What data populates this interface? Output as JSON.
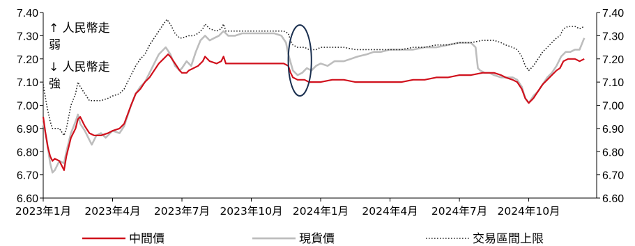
{
  "chart_data": {
    "type": "line",
    "xlabel": "",
    "ylabel": "",
    "ylim": [
      6.6,
      7.4
    ],
    "y_ticks": [
      "7.40",
      "7.30",
      "7.20",
      "7.10",
      "7.00",
      "6.90",
      "6.80",
      "6.70",
      "6.60"
    ],
    "y_ticks_right": [
      "7.40",
      "7.30",
      "7.20",
      "7.10",
      "7.00",
      "6.90",
      "6.80",
      "6.70",
      "6.60"
    ],
    "x_tick_labels": [
      "2023年1月",
      "2023年4月",
      "2023年7月",
      "2023年10月",
      "2024年1月",
      "2024年4月",
      "2024年7月",
      "2024年10月"
    ],
    "x_tick_months": [
      0,
      3,
      6,
      9,
      12,
      15,
      18,
      21
    ],
    "x_range_months": [
      0,
      23.6
    ],
    "annotations": {
      "top_line1": "↑ 人民幣走",
      "top_line2": "弱",
      "bottom_line1": "↓ 人民幣走",
      "bottom_line2": "強"
    },
    "highlight_ellipse_months": [
      10.6,
      11.6
    ],
    "series": [
      {
        "name": "中間價",
        "style": "solid",
        "color": "#d0101c",
        "points": [
          [
            0.0,
            6.95
          ],
          [
            0.1,
            6.88
          ],
          [
            0.2,
            6.82
          ],
          [
            0.3,
            6.78
          ],
          [
            0.4,
            6.76
          ],
          [
            0.5,
            6.77
          ],
          [
            0.7,
            6.76
          ],
          [
            0.9,
            6.72
          ],
          [
            1.0,
            6.78
          ],
          [
            1.2,
            6.86
          ],
          [
            1.4,
            6.9
          ],
          [
            1.5,
            6.94
          ],
          [
            1.6,
            6.95
          ],
          [
            1.8,
            6.91
          ],
          [
            2.0,
            6.88
          ],
          [
            2.2,
            6.87
          ],
          [
            2.5,
            6.87
          ],
          [
            2.8,
            6.88
          ],
          [
            3.0,
            6.89
          ],
          [
            3.3,
            6.9
          ],
          [
            3.5,
            6.92
          ],
          [
            3.8,
            7.0
          ],
          [
            4.0,
            7.05
          ],
          [
            4.2,
            7.07
          ],
          [
            4.4,
            7.1
          ],
          [
            4.6,
            7.12
          ],
          [
            4.8,
            7.15
          ],
          [
            5.0,
            7.18
          ],
          [
            5.2,
            7.2
          ],
          [
            5.4,
            7.22
          ],
          [
            5.5,
            7.21
          ],
          [
            5.7,
            7.18
          ],
          [
            5.9,
            7.15
          ],
          [
            6.0,
            7.14
          ],
          [
            6.2,
            7.14
          ],
          [
            6.3,
            7.15
          ],
          [
            6.5,
            7.16
          ],
          [
            6.7,
            7.17
          ],
          [
            6.9,
            7.19
          ],
          [
            7.0,
            7.21
          ],
          [
            7.2,
            7.19
          ],
          [
            7.5,
            7.18
          ],
          [
            7.7,
            7.19
          ],
          [
            7.8,
            7.21
          ],
          [
            7.9,
            7.18
          ],
          [
            8.2,
            7.18
          ],
          [
            8.5,
            7.18
          ],
          [
            9.0,
            7.18
          ],
          [
            9.5,
            7.18
          ],
          [
            10.0,
            7.18
          ],
          [
            10.4,
            7.18
          ],
          [
            10.6,
            7.17
          ],
          [
            10.7,
            7.14
          ],
          [
            10.8,
            7.12
          ],
          [
            11.0,
            7.11
          ],
          [
            11.3,
            7.11
          ],
          [
            11.5,
            7.1
          ],
          [
            11.8,
            7.1
          ],
          [
            12.0,
            7.1
          ],
          [
            12.5,
            7.11
          ],
          [
            13.0,
            7.11
          ],
          [
            13.5,
            7.1
          ],
          [
            14.0,
            7.1
          ],
          [
            14.5,
            7.1
          ],
          [
            15.0,
            7.1
          ],
          [
            15.5,
            7.1
          ],
          [
            16.0,
            7.11
          ],
          [
            16.5,
            7.11
          ],
          [
            17.0,
            7.12
          ],
          [
            17.5,
            7.12
          ],
          [
            18.0,
            7.13
          ],
          [
            18.5,
            7.13
          ],
          [
            19.0,
            7.14
          ],
          [
            19.5,
            7.14
          ],
          [
            19.8,
            7.13
          ],
          [
            20.0,
            7.12
          ],
          [
            20.3,
            7.11
          ],
          [
            20.5,
            7.1
          ],
          [
            20.7,
            7.07
          ],
          [
            20.85,
            7.03
          ],
          [
            21.0,
            7.01
          ],
          [
            21.2,
            7.03
          ],
          [
            21.4,
            7.06
          ],
          [
            21.6,
            7.09
          ],
          [
            21.8,
            7.11
          ],
          [
            22.0,
            7.13
          ],
          [
            22.2,
            7.15
          ],
          [
            22.35,
            7.16
          ],
          [
            22.5,
            7.19
          ],
          [
            22.7,
            7.2
          ],
          [
            23.0,
            7.2
          ],
          [
            23.2,
            7.19
          ],
          [
            23.4,
            7.2
          ]
        ]
      },
      {
        "name": "現貨價",
        "style": "solid",
        "color": "#bdbdbd",
        "points": [
          [
            0.0,
            6.93
          ],
          [
            0.15,
            6.85
          ],
          [
            0.3,
            6.75
          ],
          [
            0.4,
            6.71
          ],
          [
            0.5,
            6.72
          ],
          [
            0.7,
            6.76
          ],
          [
            0.9,
            6.75
          ],
          [
            1.0,
            6.8
          ],
          [
            1.2,
            6.88
          ],
          [
            1.4,
            6.93
          ],
          [
            1.5,
            6.96
          ],
          [
            1.6,
            6.92
          ],
          [
            1.8,
            6.89
          ],
          [
            2.0,
            6.85
          ],
          [
            2.1,
            6.83
          ],
          [
            2.3,
            6.87
          ],
          [
            2.5,
            6.88
          ],
          [
            2.7,
            6.86
          ],
          [
            3.0,
            6.89
          ],
          [
            3.3,
            6.88
          ],
          [
            3.5,
            6.91
          ],
          [
            3.8,
            7.0
          ],
          [
            4.0,
            7.05
          ],
          [
            4.2,
            7.08
          ],
          [
            4.4,
            7.1
          ],
          [
            4.6,
            7.14
          ],
          [
            4.8,
            7.18
          ],
          [
            5.0,
            7.22
          ],
          [
            5.2,
            7.24
          ],
          [
            5.3,
            7.25
          ],
          [
            5.5,
            7.22
          ],
          [
            5.7,
            7.17
          ],
          [
            5.9,
            7.15
          ],
          [
            6.0,
            7.16
          ],
          [
            6.2,
            7.19
          ],
          [
            6.4,
            7.17
          ],
          [
            6.6,
            7.23
          ],
          [
            6.8,
            7.28
          ],
          [
            7.0,
            7.3
          ],
          [
            7.2,
            7.28
          ],
          [
            7.4,
            7.29
          ],
          [
            7.6,
            7.3
          ],
          [
            7.8,
            7.32
          ],
          [
            8.0,
            7.3
          ],
          [
            8.3,
            7.3
          ],
          [
            8.6,
            7.31
          ],
          [
            9.0,
            7.31
          ],
          [
            9.5,
            7.31
          ],
          [
            10.0,
            7.31
          ],
          [
            10.3,
            7.3
          ],
          [
            10.5,
            7.27
          ],
          [
            10.6,
            7.22
          ],
          [
            10.8,
            7.15
          ],
          [
            11.0,
            7.13
          ],
          [
            11.2,
            7.14
          ],
          [
            11.4,
            7.16
          ],
          [
            11.6,
            7.15
          ],
          [
            11.8,
            7.17
          ],
          [
            12.0,
            7.18
          ],
          [
            12.3,
            7.17
          ],
          [
            12.6,
            7.19
          ],
          [
            13.0,
            7.19
          ],
          [
            13.3,
            7.2
          ],
          [
            13.6,
            7.21
          ],
          [
            14.0,
            7.22
          ],
          [
            14.3,
            7.23
          ],
          [
            14.6,
            7.23
          ],
          [
            15.0,
            7.24
          ],
          [
            15.5,
            7.24
          ],
          [
            16.0,
            7.24
          ],
          [
            16.5,
            7.25
          ],
          [
            17.0,
            7.25
          ],
          [
            17.5,
            7.26
          ],
          [
            18.0,
            7.27
          ],
          [
            18.5,
            7.27
          ],
          [
            18.7,
            7.25
          ],
          [
            18.8,
            7.16
          ],
          [
            18.9,
            7.15
          ],
          [
            19.1,
            7.14
          ],
          [
            19.3,
            7.14
          ],
          [
            19.5,
            7.13
          ],
          [
            19.8,
            7.12
          ],
          [
            20.0,
            7.12
          ],
          [
            20.3,
            7.12
          ],
          [
            20.5,
            7.11
          ],
          [
            20.7,
            7.08
          ],
          [
            20.85,
            7.03
          ],
          [
            21.0,
            7.01
          ],
          [
            21.2,
            7.04
          ],
          [
            21.4,
            7.06
          ],
          [
            21.6,
            7.09
          ],
          [
            21.8,
            7.12
          ],
          [
            22.0,
            7.14
          ],
          [
            22.2,
            7.17
          ],
          [
            22.4,
            7.21
          ],
          [
            22.6,
            7.23
          ],
          [
            22.8,
            7.23
          ],
          [
            23.0,
            7.24
          ],
          [
            23.2,
            7.24
          ],
          [
            23.4,
            7.29
          ]
        ]
      },
      {
        "name": "交易區間上限",
        "style": "dotted",
        "color": "#222222",
        "points": [
          [
            0.0,
            7.09
          ],
          [
            0.15,
            7.0
          ],
          [
            0.3,
            6.93
          ],
          [
            0.4,
            6.9
          ],
          [
            0.5,
            6.9
          ],
          [
            0.7,
            6.9
          ],
          [
            0.9,
            6.87
          ],
          [
            1.0,
            6.9
          ],
          [
            1.2,
            7.0
          ],
          [
            1.4,
            7.05
          ],
          [
            1.5,
            7.1
          ],
          [
            1.6,
            7.08
          ],
          [
            1.8,
            7.05
          ],
          [
            2.0,
            7.02
          ],
          [
            2.2,
            7.02
          ],
          [
            2.5,
            7.02
          ],
          [
            2.8,
            7.03
          ],
          [
            3.0,
            7.04
          ],
          [
            3.3,
            7.05
          ],
          [
            3.5,
            7.07
          ],
          [
            3.8,
            7.13
          ],
          [
            4.0,
            7.17
          ],
          [
            4.2,
            7.2
          ],
          [
            4.4,
            7.22
          ],
          [
            4.6,
            7.26
          ],
          [
            4.8,
            7.29
          ],
          [
            5.0,
            7.32
          ],
          [
            5.2,
            7.35
          ],
          [
            5.35,
            7.37
          ],
          [
            5.5,
            7.35
          ],
          [
            5.7,
            7.31
          ],
          [
            5.9,
            7.29
          ],
          [
            6.0,
            7.29
          ],
          [
            6.3,
            7.3
          ],
          [
            6.5,
            7.3
          ],
          [
            6.7,
            7.31
          ],
          [
            6.9,
            7.33
          ],
          [
            7.0,
            7.35
          ],
          [
            7.2,
            7.33
          ],
          [
            7.5,
            7.32
          ],
          [
            7.7,
            7.33
          ],
          [
            7.8,
            7.35
          ],
          [
            7.9,
            7.32
          ],
          [
            8.2,
            7.32
          ],
          [
            8.5,
            7.32
          ],
          [
            9.0,
            7.32
          ],
          [
            9.5,
            7.32
          ],
          [
            10.0,
            7.32
          ],
          [
            10.4,
            7.32
          ],
          [
            10.6,
            7.31
          ],
          [
            10.7,
            7.28
          ],
          [
            10.8,
            7.26
          ],
          [
            11.0,
            7.25
          ],
          [
            11.3,
            7.25
          ],
          [
            11.5,
            7.24
          ],
          [
            11.8,
            7.24
          ],
          [
            12.0,
            7.25
          ],
          [
            12.5,
            7.25
          ],
          [
            13.0,
            7.25
          ],
          [
            13.5,
            7.24
          ],
          [
            14.0,
            7.24
          ],
          [
            14.5,
            7.24
          ],
          [
            15.0,
            7.24
          ],
          [
            15.5,
            7.24
          ],
          [
            16.0,
            7.25
          ],
          [
            16.5,
            7.25
          ],
          [
            17.0,
            7.26
          ],
          [
            17.5,
            7.26
          ],
          [
            18.0,
            7.27
          ],
          [
            18.5,
            7.27
          ],
          [
            19.0,
            7.28
          ],
          [
            19.5,
            7.28
          ],
          [
            19.8,
            7.27
          ],
          [
            20.0,
            7.26
          ],
          [
            20.3,
            7.25
          ],
          [
            20.5,
            7.24
          ],
          [
            20.7,
            7.21
          ],
          [
            20.85,
            7.17
          ],
          [
            21.0,
            7.15
          ],
          [
            21.2,
            7.17
          ],
          [
            21.4,
            7.2
          ],
          [
            21.6,
            7.23
          ],
          [
            21.8,
            7.25
          ],
          [
            22.0,
            7.27
          ],
          [
            22.2,
            7.29
          ],
          [
            22.35,
            7.3
          ],
          [
            22.5,
            7.33
          ],
          [
            22.7,
            7.34
          ],
          [
            23.0,
            7.34
          ],
          [
            23.2,
            7.33
          ],
          [
            23.4,
            7.34
          ]
        ]
      }
    ]
  }
}
